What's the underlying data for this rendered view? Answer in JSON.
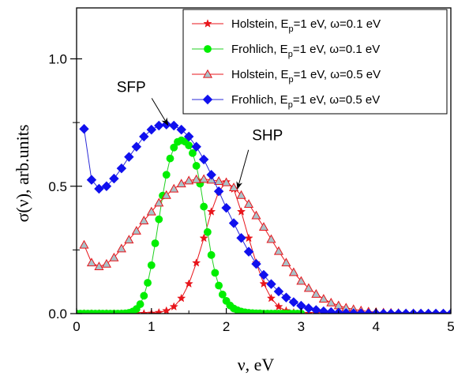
{
  "chart_data": {
    "type": "line",
    "xlabel": "ν, eV",
    "ylabel": "σ(ν), arb.units",
    "xlim": [
      0,
      5
    ],
    "ylim": [
      0,
      1.2
    ],
    "x_ticks": [
      "0",
      "1",
      "2",
      "3",
      "4",
      "5"
    ],
    "y_ticks": [
      "0.0",
      "0.5",
      "1.0"
    ],
    "grid": false,
    "legend": "top-right",
    "legend_entries": [
      {
        "pre": "Holstein, E",
        "sub": "p",
        "post": "=1 eV, ω=0.1 eV"
      },
      {
        "pre": "Frohlich, E",
        "sub": "p",
        "post": "=1 eV, ω=0.1 eV"
      },
      {
        "pre": "Holstein, E",
        "sub": "p",
        "post": "=1 eV, ω=0.5 eV"
      },
      {
        "pre": "Frohlich, E",
        "sub": "p",
        "post": "=1 eV, ω=0.5 eV"
      }
    ],
    "annotations": [
      {
        "text": "SFP",
        "x": 0.73,
        "y": 0.87,
        "arrow_to_x": 1.22,
        "arrow_to_y": 0.74
      },
      {
        "text": "SHP",
        "x": 2.55,
        "y": 0.68,
        "arrow_to_x": 2.15,
        "arrow_to_y": 0.49
      }
    ],
    "series": [
      {
        "marker": "star",
        "color": "#e8151b",
        "marker_color": "#e8151b",
        "marker_stroke": "#e8151b",
        "x": [
          0.0,
          0.1,
          0.2,
          0.3,
          0.4,
          0.5,
          0.6,
          0.7,
          0.8,
          0.9,
          1.0,
          1.1,
          1.2,
          1.3,
          1.4,
          1.5,
          1.6,
          1.7,
          1.8,
          1.9,
          2.0,
          2.1,
          2.2,
          2.3,
          2.4,
          2.5,
          2.6,
          2.7,
          2.8,
          2.9,
          3.0,
          3.1,
          3.2,
          3.3,
          3.4,
          3.5,
          3.6,
          3.7,
          3.8,
          3.9,
          4.0,
          4.1,
          4.2,
          4.3,
          4.4,
          4.5,
          4.6,
          4.7,
          4.8,
          4.9,
          5.0
        ],
        "y": [
          0,
          0,
          0,
          0,
          0,
          0,
          0,
          0,
          0,
          0,
          0.001,
          0.004,
          0.011,
          0.027,
          0.06,
          0.117,
          0.199,
          0.296,
          0.4,
          0.479,
          0.517,
          0.489,
          0.4,
          0.296,
          0.199,
          0.117,
          0.06,
          0.027,
          0.011,
          0.004,
          0.001,
          0,
          0,
          0,
          0,
          0,
          0,
          0,
          0,
          0,
          0,
          0,
          0,
          0,
          0,
          0,
          0,
          0,
          0,
          0,
          0
        ]
      },
      {
        "marker": "circle",
        "color": "#20d020",
        "marker_color": "#00ee00",
        "marker_stroke": "#00ee00",
        "x": [
          0.0,
          0.05,
          0.1,
          0.15,
          0.2,
          0.25,
          0.3,
          0.35,
          0.4,
          0.45,
          0.5,
          0.55,
          0.6,
          0.65,
          0.7,
          0.75,
          0.8,
          0.85,
          0.9,
          0.95,
          1.0,
          1.05,
          1.1,
          1.15,
          1.2,
          1.25,
          1.3,
          1.35,
          1.4,
          1.45,
          1.5,
          1.55,
          1.6,
          1.65,
          1.7,
          1.75,
          1.8,
          1.85,
          1.9,
          1.95,
          2.0,
          2.05,
          2.1,
          2.15,
          2.2,
          2.25,
          2.3,
          2.35,
          2.4,
          2.45,
          2.5,
          2.55,
          2.6,
          2.65,
          2.7,
          2.75,
          2.8,
          2.85,
          2.9,
          2.95,
          3.0
        ],
        "y": [
          0,
          0,
          0,
          0,
          0,
          0,
          0,
          0,
          0,
          0,
          0,
          0,
          0,
          0.001,
          0.003,
          0.008,
          0.018,
          0.037,
          0.07,
          0.121,
          0.19,
          0.276,
          0.37,
          0.463,
          0.545,
          0.609,
          0.652,
          0.674,
          0.68,
          0.675,
          0.66,
          0.63,
          0.58,
          0.51,
          0.42,
          0.32,
          0.23,
          0.16,
          0.11,
          0.075,
          0.05,
          0.032,
          0.02,
          0.013,
          0.008,
          0.005,
          0.003,
          0.002,
          0.001,
          0.001,
          0,
          0,
          0,
          0,
          0,
          0,
          0,
          0,
          0,
          0,
          0
        ]
      },
      {
        "marker": "triangle",
        "color": "#e8151b",
        "marker_color": "#a9c3c9",
        "marker_stroke": "#e8151b",
        "x": [
          0.1,
          0.2,
          0.3,
          0.4,
          0.5,
          0.6,
          0.7,
          0.8,
          0.9,
          1.0,
          1.1,
          1.2,
          1.3,
          1.4,
          1.5,
          1.6,
          1.7,
          1.8,
          1.9,
          2.0,
          2.1,
          2.2,
          2.3,
          2.4,
          2.5,
          2.6,
          2.7,
          2.8,
          2.9,
          3.0,
          3.1,
          3.2,
          3.3,
          3.4,
          3.5,
          3.6,
          3.7,
          3.8,
          3.9,
          4.0,
          4.1,
          4.2,
          4.3,
          4.4,
          4.5,
          4.6,
          4.7,
          4.8,
          4.9,
          5.0
        ],
        "y": [
          0.27,
          0.2,
          0.185,
          0.195,
          0.22,
          0.255,
          0.29,
          0.325,
          0.365,
          0.4,
          0.435,
          0.465,
          0.49,
          0.51,
          0.522,
          0.527,
          0.528,
          0.525,
          0.52,
          0.515,
          0.495,
          0.465,
          0.43,
          0.385,
          0.34,
          0.292,
          0.245,
          0.2,
          0.162,
          0.128,
          0.1,
          0.077,
          0.058,
          0.043,
          0.032,
          0.023,
          0.017,
          0.012,
          0.008,
          0.006,
          0.004,
          0.003,
          0.002,
          0.001,
          0.001,
          0,
          0,
          0,
          0,
          0
        ]
      },
      {
        "marker": "diamond",
        "color": "#2a2ad8",
        "marker_color": "#1010ee",
        "marker_stroke": "#1010ee",
        "x": [
          0.1,
          0.2,
          0.3,
          0.4,
          0.5,
          0.6,
          0.7,
          0.8,
          0.9,
          1.0,
          1.1,
          1.2,
          1.3,
          1.4,
          1.5,
          1.6,
          1.7,
          1.8,
          1.9,
          2.0,
          2.1,
          2.2,
          2.3,
          2.4,
          2.5,
          2.6,
          2.7,
          2.8,
          2.9,
          3.0,
          3.1,
          3.2,
          3.3,
          3.4,
          3.5,
          3.6,
          3.7,
          3.8,
          3.9,
          4.0,
          4.1,
          4.2,
          4.3,
          4.4,
          4.5,
          4.6,
          4.7,
          4.8,
          4.9,
          5.0
        ],
        "y": [
          0.725,
          0.525,
          0.49,
          0.5,
          0.53,
          0.57,
          0.615,
          0.655,
          0.695,
          0.722,
          0.738,
          0.742,
          0.738,
          0.722,
          0.695,
          0.655,
          0.605,
          0.545,
          0.48,
          0.415,
          0.355,
          0.297,
          0.243,
          0.195,
          0.152,
          0.116,
          0.087,
          0.063,
          0.045,
          0.031,
          0.021,
          0.014,
          0.009,
          0.006,
          0.004,
          0.002,
          0.001,
          0.001,
          0,
          0,
          0,
          0,
          0,
          0,
          0,
          0,
          0,
          0,
          0,
          0
        ]
      }
    ]
  }
}
